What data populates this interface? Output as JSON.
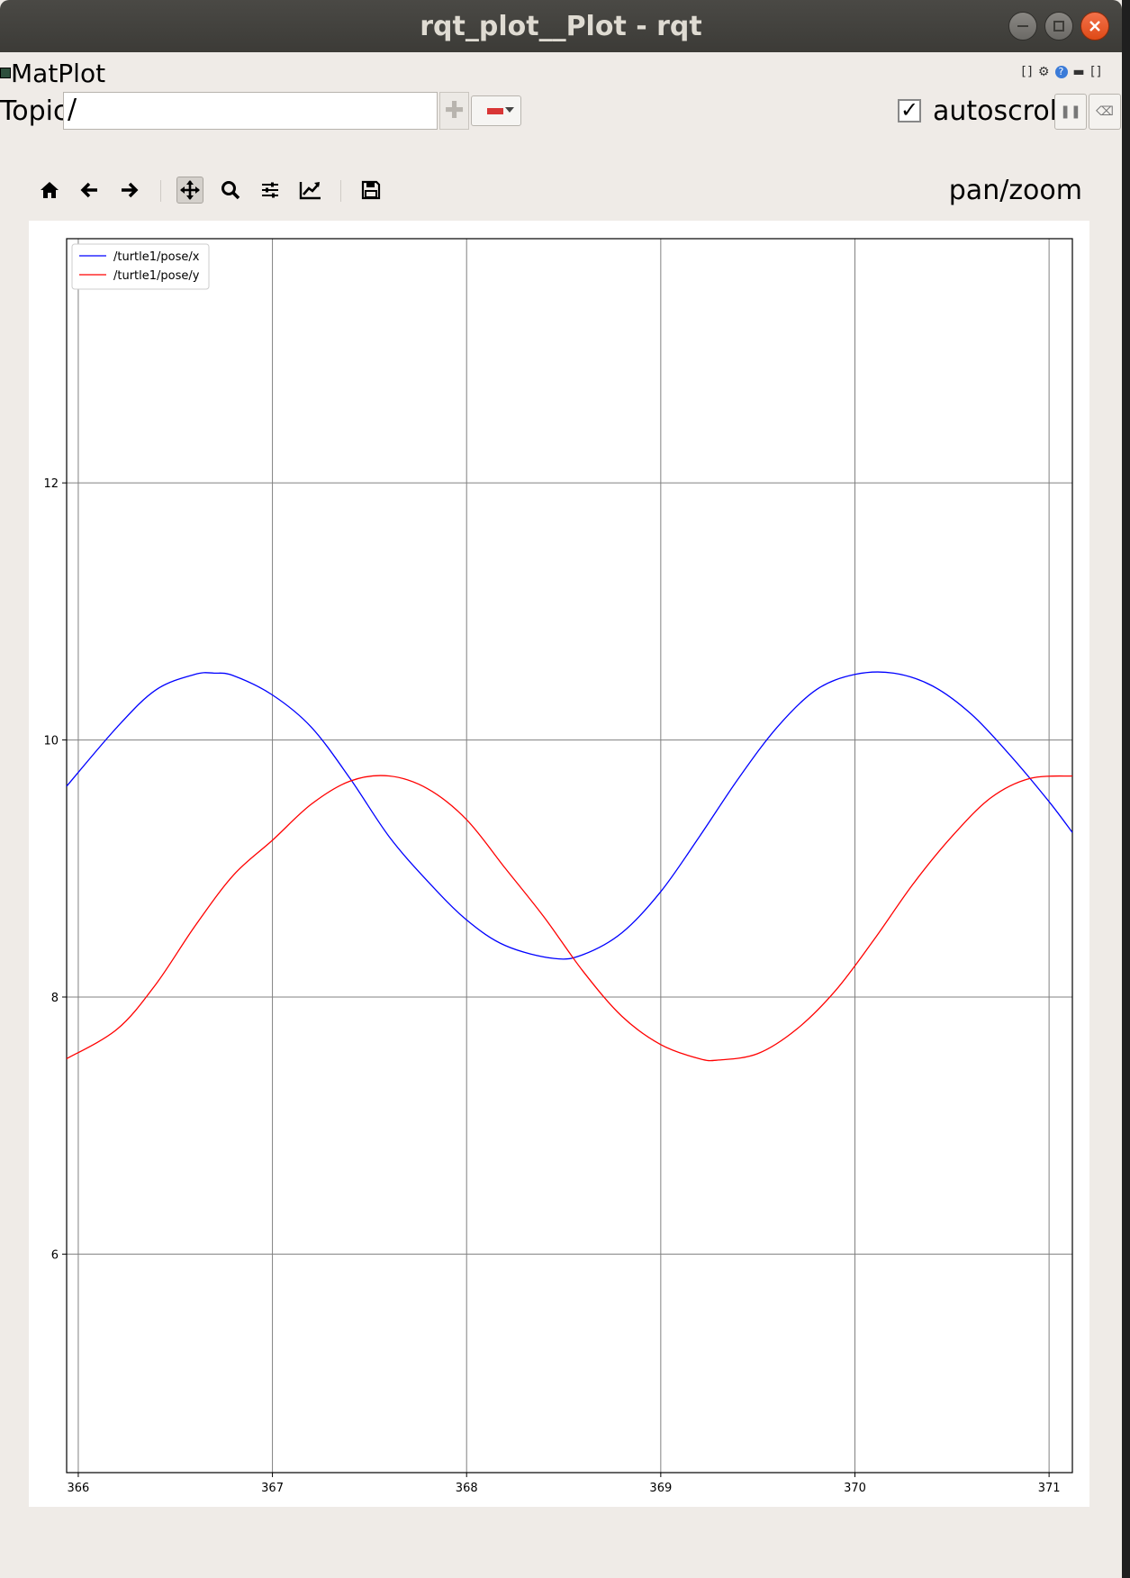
{
  "window": {
    "title": "rqt_plot__Plot - rqt"
  },
  "plugin": {
    "title": "MatPlot"
  },
  "topic": {
    "label": "Topic",
    "value": "/"
  },
  "autoscroll": {
    "label": "autoscroll",
    "checked": true
  },
  "toolbar": {
    "mode_label": "pan/zoom",
    "icons": [
      "home-icon",
      "back-icon",
      "forward-icon",
      "pan-icon",
      "zoom-icon",
      "configure-subplots-icon",
      "edit-curves-icon",
      "save-icon"
    ]
  },
  "colors": {
    "series_x": "#0000ff",
    "series_y": "#ff0000",
    "close_button": "#e95420"
  },
  "chart_data": {
    "type": "line",
    "title": "",
    "xlabel": "",
    "ylabel": "",
    "xlim": [
      365.94,
      371.12
    ],
    "ylim": [
      4.3,
      13.9
    ],
    "xticks": [
      366,
      367,
      368,
      369,
      370,
      371
    ],
    "yticks": [
      6,
      8,
      10,
      12
    ],
    "grid": true,
    "legend": "top-left",
    "series": [
      {
        "name": "/turtle1/pose/x",
        "color": "#0000ff",
        "x": [
          365.94,
          366.2,
          366.4,
          366.6,
          366.7,
          366.8,
          367.0,
          367.2,
          367.4,
          367.6,
          367.8,
          368.0,
          368.2,
          368.45,
          368.6,
          368.8,
          369.0,
          369.2,
          369.4,
          369.6,
          369.8,
          370.0,
          370.2,
          370.4,
          370.6,
          370.8,
          371.0,
          371.12
        ],
        "y": [
          9.64,
          10.1,
          10.39,
          10.51,
          10.52,
          10.5,
          10.35,
          10.1,
          9.7,
          9.25,
          8.9,
          8.6,
          8.4,
          8.3,
          8.33,
          8.5,
          8.82,
          9.25,
          9.7,
          10.1,
          10.39,
          10.51,
          10.52,
          10.42,
          10.2,
          9.88,
          9.52,
          9.28
        ]
      },
      {
        "name": "/turtle1/pose/y",
        "color": "#ff0000",
        "x": [
          365.94,
          366.2,
          366.4,
          366.6,
          366.8,
          367.0,
          367.2,
          367.4,
          367.6,
          367.8,
          368.0,
          368.2,
          368.4,
          368.6,
          368.8,
          369.0,
          369.2,
          369.3,
          369.5,
          369.7,
          369.9,
          370.1,
          370.3,
          370.5,
          370.7,
          370.9,
          371.12
        ],
        "y": [
          7.52,
          7.75,
          8.1,
          8.55,
          8.95,
          9.22,
          9.5,
          9.68,
          9.72,
          9.62,
          9.38,
          9.0,
          8.62,
          8.2,
          7.85,
          7.63,
          7.52,
          7.51,
          7.56,
          7.75,
          8.05,
          8.45,
          8.88,
          9.25,
          9.55,
          9.7,
          9.72
        ]
      }
    ]
  }
}
